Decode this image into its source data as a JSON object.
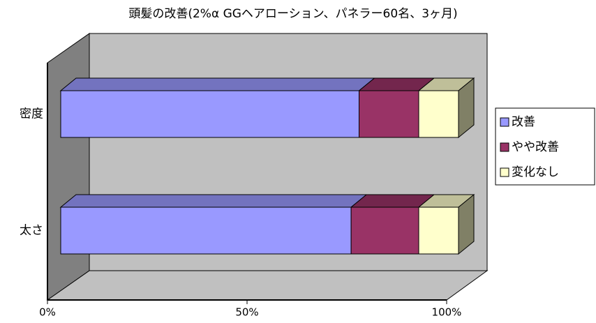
{
  "chart_data": {
    "type": "bar3d_stacked_horizontal",
    "title": "頭髪の改善(2%α GGヘアローション、パネラー60名、3ヶ月)",
    "categories": [
      "密度",
      "太さ"
    ],
    "series": [
      {
        "name": "改善",
        "color": "#9999ff",
        "values": [
          75,
          73
        ]
      },
      {
        "name": "やや改善",
        "color": "#993366",
        "values": [
          15,
          17
        ]
      },
      {
        "name": "変化なし",
        "color": "#ffffcc",
        "values": [
          10,
          10
        ]
      }
    ],
    "xlim": [
      0,
      100
    ],
    "xticks": [
      {
        "value": 0,
        "label": "0%"
      },
      {
        "value": 50,
        "label": "50%"
      },
      {
        "value": 100,
        "label": "100%"
      }
    ],
    "legend": "right"
  }
}
